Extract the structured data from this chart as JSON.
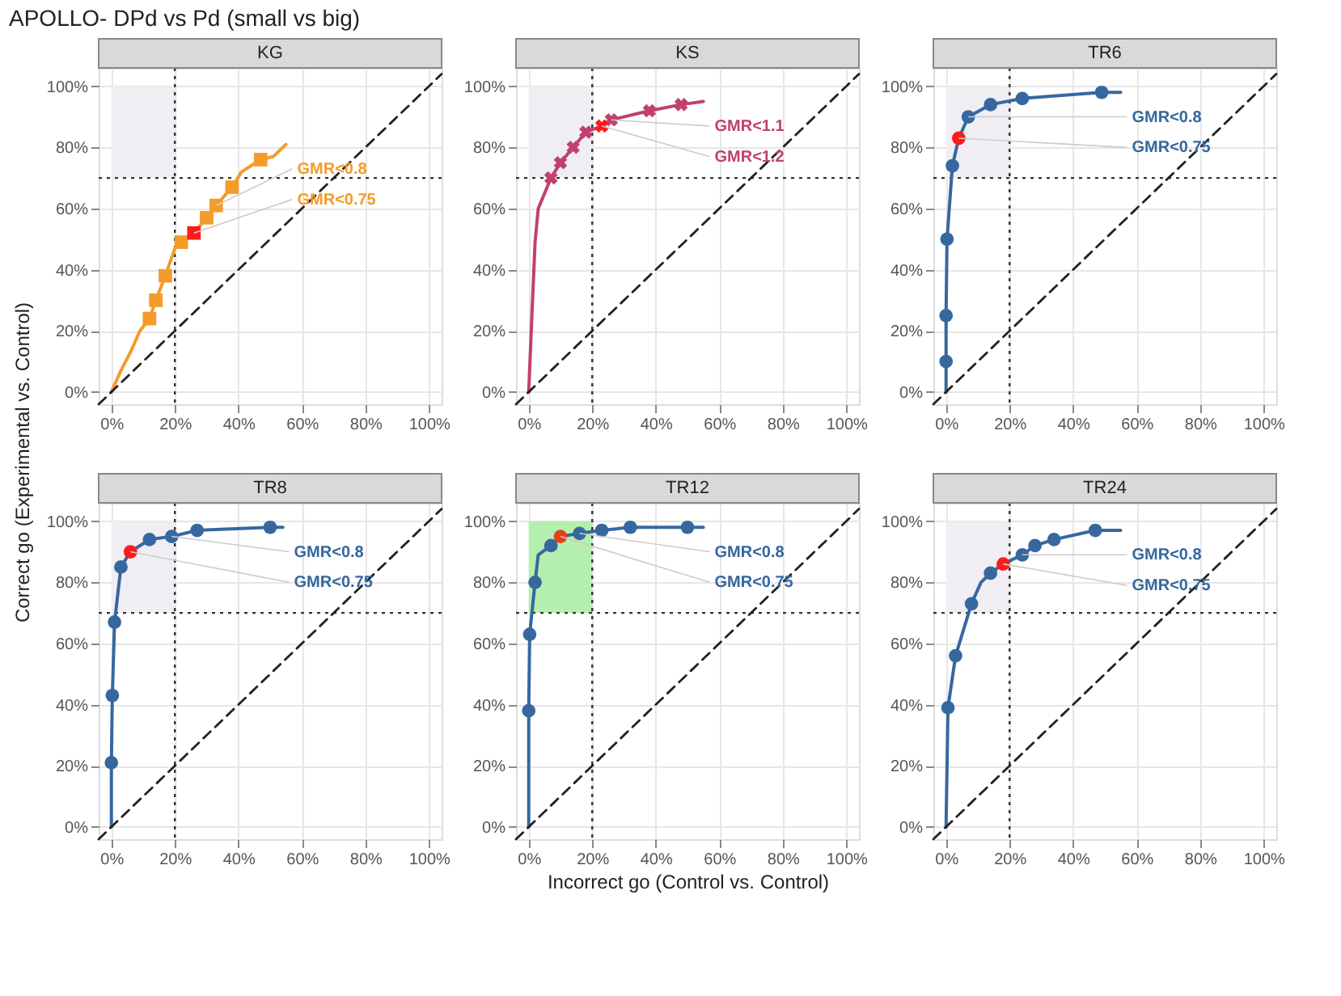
{
  "chart_data": [
    {
      "type": "line",
      "title": "KG",
      "xlim": [
        -4,
        104
      ],
      "ylim": [
        -4,
        106
      ],
      "xticks": [
        {
          "value": 0,
          "label": "0%"
        },
        {
          "value": 20,
          "label": "20%"
        },
        {
          "value": 40,
          "label": "40%"
        },
        {
          "value": 60,
          "label": "60%"
        },
        {
          "value": 80,
          "label": "80%"
        },
        {
          "value": 100,
          "label": "100%"
        }
      ],
      "yticks": [
        {
          "value": 0,
          "label": "0%"
        },
        {
          "value": 20,
          "label": "20%"
        },
        {
          "value": 40,
          "label": "40%"
        },
        {
          "value": 60,
          "label": "60%"
        },
        {
          "value": 80,
          "label": "80%"
        },
        {
          "value": 100,
          "label": "100%"
        }
      ],
      "grid": true,
      "ref_lines": [
        {
          "axis": "x",
          "value": 20,
          "color": "#333333",
          "line_style": "dotted"
        },
        {
          "axis": "y",
          "value": 70,
          "color": "#333333",
          "line_style": "dotted"
        }
      ],
      "bands": [
        {
          "axis": "x",
          "from": 0,
          "to": 20,
          "color": "#f0eef3"
        }
      ],
      "series": [
        {
          "type": "line",
          "color": "#f39c2b",
          "marker": "none",
          "line_style": "solid",
          "x": [
            0,
            3,
            6,
            9,
            12,
            14,
            17,
            20,
            22,
            26,
            30,
            33,
            38,
            41,
            44,
            47,
            51,
            55
          ],
          "values": [
            0,
            7,
            13,
            20,
            24,
            30,
            38,
            47,
            49,
            52,
            57,
            61,
            67,
            72,
            74,
            76,
            77,
            81
          ]
        },
        {
          "type": "scatter",
          "color": "#f39c2b",
          "marker": "square",
          "x": [
            12,
            14,
            17,
            22,
            30,
            33,
            38,
            47
          ],
          "values": [
            24,
            30,
            38,
            49,
            57,
            61,
            67,
            76
          ]
        },
        {
          "type": "scatter",
          "color": "#ff1a1a",
          "marker": "square",
          "x": [
            26
          ],
          "values": [
            52
          ]
        },
        {
          "type": "line",
          "color": "#222222",
          "marker": "none",
          "line_style": "dashed",
          "x": [
            -4,
            104
          ],
          "values": [
            -4,
            104
          ]
        }
      ],
      "annotations": [
        {
          "text": "GMR<0.8",
          "x": 33,
          "y": 61
        },
        {
          "text": "GMR<0.75",
          "x": 26,
          "y": 52
        }
      ]
    },
    {
      "type": "line",
      "title": "KS",
      "xlim": [
        -4,
        104
      ],
      "ylim": [
        -4,
        106
      ],
      "xticks": [
        {
          "value": 0,
          "label": "0%"
        },
        {
          "value": 20,
          "label": "20%"
        },
        {
          "value": 40,
          "label": "40%"
        },
        {
          "value": 60,
          "label": "60%"
        },
        {
          "value": 80,
          "label": "80%"
        },
        {
          "value": 100,
          "label": "100%"
        }
      ],
      "yticks": [
        {
          "value": 0,
          "label": "0%"
        },
        {
          "value": 20,
          "label": "20%"
        },
        {
          "value": 40,
          "label": "40%"
        },
        {
          "value": 60,
          "label": "60%"
        },
        {
          "value": 80,
          "label": "80%"
        },
        {
          "value": 100,
          "label": "100%"
        }
      ],
      "grid": true,
      "ref_lines": [
        {
          "axis": "x",
          "value": 20,
          "color": "#333333",
          "line_style": "dotted"
        },
        {
          "axis": "y",
          "value": 70,
          "color": "#333333",
          "line_style": "dotted"
        }
      ],
      "bands": [
        {
          "axis": "x",
          "from": 0,
          "to": 20,
          "color": "#f0eef3"
        }
      ],
      "series": [
        {
          "type": "line",
          "color": "#c2406e",
          "marker": "none",
          "line_style": "solid",
          "x": [
            0,
            1,
            2,
            3,
            7,
            10,
            14,
            18,
            23,
            26,
            38,
            48,
            55
          ],
          "values": [
            0,
            25,
            49,
            60,
            70,
            75,
            80,
            85,
            87,
            89,
            92,
            94,
            95
          ]
        },
        {
          "type": "scatter",
          "color": "#c2406e",
          "marker": "cross",
          "x": [
            7,
            10,
            14,
            18,
            26,
            38,
            48
          ],
          "values": [
            70,
            75,
            80,
            85,
            89,
            92,
            94
          ]
        },
        {
          "type": "scatter",
          "color": "#ff1a1a",
          "marker": "cross",
          "x": [
            23
          ],
          "values": [
            87
          ]
        },
        {
          "type": "line",
          "color": "#222222",
          "marker": "none",
          "line_style": "dashed",
          "x": [
            -4,
            104
          ],
          "values": [
            -4,
            104
          ]
        }
      ],
      "annotations": [
        {
          "text": "GMR<1.1",
          "x": 26,
          "y": 89
        },
        {
          "text": "GMR<1.2",
          "x": 23,
          "y": 87
        }
      ]
    },
    {
      "type": "line",
      "title": "TR6",
      "xlim": [
        -4,
        104
      ],
      "ylim": [
        -4,
        106
      ],
      "xticks": [
        {
          "value": 0,
          "label": "0%"
        },
        {
          "value": 20,
          "label": "20%"
        },
        {
          "value": 40,
          "label": "40%"
        },
        {
          "value": 60,
          "label": "60%"
        },
        {
          "value": 80,
          "label": "80%"
        },
        {
          "value": 100,
          "label": "100%"
        }
      ],
      "yticks": [
        {
          "value": 0,
          "label": "0%"
        },
        {
          "value": 20,
          "label": "20%"
        },
        {
          "value": 40,
          "label": "40%"
        },
        {
          "value": 60,
          "label": "60%"
        },
        {
          "value": 80,
          "label": "80%"
        },
        {
          "value": 100,
          "label": "100%"
        }
      ],
      "grid": true,
      "ref_lines": [
        {
          "axis": "x",
          "value": 20,
          "color": "#333333",
          "line_style": "dotted"
        },
        {
          "axis": "y",
          "value": 70,
          "color": "#333333",
          "line_style": "dotted"
        }
      ],
      "bands": [
        {
          "axis": "x",
          "from": 0,
          "to": 20,
          "color": "#f0eef3"
        }
      ],
      "series": [
        {
          "type": "line",
          "color": "#36689f",
          "marker": "none",
          "line_style": "solid",
          "x": [
            0,
            0,
            0,
            0.3,
            2,
            4,
            7,
            14,
            24,
            49,
            55
          ],
          "values": [
            0,
            10,
            25,
            50,
            74,
            83,
            90,
            94,
            96,
            98,
            98
          ]
        },
        {
          "type": "scatter",
          "color": "#36689f",
          "marker": "circle",
          "x": [
            0,
            0,
            0.3,
            2,
            7,
            14,
            24,
            49
          ],
          "values": [
            10,
            25,
            50,
            74,
            90,
            94,
            96,
            98
          ]
        },
        {
          "type": "scatter",
          "color": "#ff1a1a",
          "marker": "circle",
          "x": [
            4
          ],
          "values": [
            83
          ]
        },
        {
          "type": "line",
          "color": "#222222",
          "marker": "none",
          "line_style": "dashed",
          "x": [
            -4,
            104
          ],
          "values": [
            -4,
            104
          ]
        }
      ],
      "annotations": [
        {
          "text": "GMR<0.8",
          "x": 7,
          "y": 90
        },
        {
          "text": "GMR<0.75",
          "x": 4,
          "y": 83
        }
      ]
    },
    {
      "type": "line",
      "title": "TR8",
      "xlim": [
        -4,
        104
      ],
      "ylim": [
        -4,
        106
      ],
      "xticks": [
        {
          "value": 0,
          "label": "0%"
        },
        {
          "value": 20,
          "label": "20%"
        },
        {
          "value": 40,
          "label": "40%"
        },
        {
          "value": 60,
          "label": "60%"
        },
        {
          "value": 80,
          "label": "80%"
        },
        {
          "value": 100,
          "label": "100%"
        }
      ],
      "yticks": [
        {
          "value": 0,
          "label": "0%"
        },
        {
          "value": 20,
          "label": "20%"
        },
        {
          "value": 40,
          "label": "40%"
        },
        {
          "value": 60,
          "label": "60%"
        },
        {
          "value": 80,
          "label": "80%"
        },
        {
          "value": 100,
          "label": "100%"
        }
      ],
      "grid": true,
      "ref_lines": [
        {
          "axis": "x",
          "value": 20,
          "color": "#333333",
          "line_style": "dotted"
        },
        {
          "axis": "y",
          "value": 70,
          "color": "#333333",
          "line_style": "dotted"
        }
      ],
      "bands": [
        {
          "axis": "x",
          "from": 0,
          "to": 20,
          "color": "#f0eef3"
        }
      ],
      "series": [
        {
          "type": "line",
          "color": "#36689f",
          "marker": "none",
          "line_style": "solid",
          "x": [
            0,
            0,
            0.3,
            1,
            3,
            6,
            9,
            12,
            19,
            27,
            50,
            54
          ],
          "values": [
            0,
            21,
            43,
            67,
            85,
            90,
            92,
            94,
            95,
            97,
            98,
            98
          ]
        },
        {
          "type": "scatter",
          "color": "#36689f",
          "marker": "circle",
          "x": [
            0,
            0.3,
            1,
            3,
            12,
            19,
            27,
            50
          ],
          "values": [
            21,
            43,
            67,
            85,
            94,
            95,
            97,
            98
          ]
        },
        {
          "type": "scatter",
          "color": "#ff1a1a",
          "marker": "circle",
          "x": [
            6
          ],
          "values": [
            90
          ]
        },
        {
          "type": "line",
          "color": "#222222",
          "marker": "none",
          "line_style": "dashed",
          "x": [
            -4,
            104
          ],
          "values": [
            -4,
            104
          ]
        }
      ],
      "annotations": [
        {
          "text": "GMR<0.8",
          "x": 19,
          "y": 95
        },
        {
          "text": "GMR<0.75",
          "x": 6,
          "y": 90
        }
      ]
    },
    {
      "type": "line",
      "title": "TR12",
      "xlabel": "Incorrect go (Control vs. Control)",
      "xlim": [
        -4,
        104
      ],
      "ylim": [
        -4,
        106
      ],
      "xticks": [
        {
          "value": 0,
          "label": "0%"
        },
        {
          "value": 20,
          "label": "20%"
        },
        {
          "value": 40,
          "label": "40%"
        },
        {
          "value": 60,
          "label": "60%"
        },
        {
          "value": 80,
          "label": "80%"
        },
        {
          "value": 100,
          "label": "100%"
        }
      ],
      "yticks": [
        {
          "value": 0,
          "label": "0%"
        },
        {
          "value": 20,
          "label": "20%"
        },
        {
          "value": 40,
          "label": "40%"
        },
        {
          "value": 60,
          "label": "60%"
        },
        {
          "value": 80,
          "label": "80%"
        },
        {
          "value": 100,
          "label": "100%"
        }
      ],
      "grid": true,
      "ref_lines": [
        {
          "axis": "x",
          "value": 20,
          "color": "#333333",
          "line_style": "dotted"
        },
        {
          "axis": "y",
          "value": 70,
          "color": "#333333",
          "line_style": "dotted"
        }
      ],
      "bands": [
        {
          "axis": "x",
          "from": 0,
          "to": 20,
          "color": "#b5efad"
        }
      ],
      "series": [
        {
          "type": "line",
          "color": "#36689f",
          "marker": "none",
          "line_style": "solid",
          "x": [
            0,
            0,
            0.3,
            2,
            3,
            7,
            10,
            16,
            23,
            32,
            50,
            55
          ],
          "values": [
            0,
            38,
            63,
            80,
            89,
            92,
            95,
            96,
            97,
            98,
            98,
            98
          ]
        },
        {
          "type": "scatter",
          "color": "#36689f",
          "marker": "circle",
          "x": [
            0,
            0.3,
            2,
            7,
            16,
            23,
            32,
            50
          ],
          "values": [
            38,
            63,
            80,
            92,
            96,
            97,
            98,
            98
          ]
        },
        {
          "type": "scatter",
          "color": "#e2421b",
          "marker": "circle",
          "x": [
            10
          ],
          "values": [
            95
          ]
        },
        {
          "type": "line",
          "color": "#222222",
          "marker": "none",
          "line_style": "dashed",
          "x": [
            -4,
            104
          ],
          "values": [
            -4,
            104
          ]
        }
      ],
      "annotations": [
        {
          "text": "GMR<0.8",
          "x": 16,
          "y": 96
        },
        {
          "text": "GMR<0.75",
          "x": 10,
          "y": 95
        }
      ]
    },
    {
      "type": "line",
      "title": "TR24",
      "xlim": [
        -4,
        104
      ],
      "ylim": [
        -4,
        106
      ],
      "xticks": [
        {
          "value": 0,
          "label": "0%"
        },
        {
          "value": 20,
          "label": "20%"
        },
        {
          "value": 40,
          "label": "40%"
        },
        {
          "value": 60,
          "label": "60%"
        },
        {
          "value": 80,
          "label": "80%"
        },
        {
          "value": 100,
          "label": "100%"
        }
      ],
      "yticks": [
        {
          "value": 0,
          "label": "0%"
        },
        {
          "value": 20,
          "label": "20%"
        },
        {
          "value": 40,
          "label": "40%"
        },
        {
          "value": 60,
          "label": "60%"
        },
        {
          "value": 80,
          "label": "80%"
        },
        {
          "value": 100,
          "label": "100%"
        }
      ],
      "grid": true,
      "ref_lines": [
        {
          "axis": "x",
          "value": 20,
          "color": "#333333",
          "line_style": "dotted"
        },
        {
          "axis": "y",
          "value": 70,
          "color": "#333333",
          "line_style": "dotted"
        }
      ],
      "bands": [
        {
          "axis": "x",
          "from": 0,
          "to": 20,
          "color": "#f0eef3"
        }
      ],
      "series": [
        {
          "type": "line",
          "color": "#36689f",
          "marker": "none",
          "line_style": "solid",
          "x": [
            0,
            0.6,
            3,
            8,
            11,
            14,
            18,
            24,
            28,
            34,
            47,
            55
          ],
          "values": [
            0,
            39,
            56,
            73,
            80,
            83,
            86,
            89,
            92,
            94,
            97,
            97
          ]
        },
        {
          "type": "scatter",
          "color": "#36689f",
          "marker": "circle",
          "x": [
            0.6,
            3,
            8,
            14,
            24,
            28,
            34,
            47
          ],
          "values": [
            39,
            56,
            73,
            83,
            89,
            92,
            94,
            97
          ]
        },
        {
          "type": "scatter",
          "color": "#ff1a1a",
          "marker": "circle",
          "x": [
            18
          ],
          "values": [
            86
          ]
        },
        {
          "type": "line",
          "color": "#222222",
          "marker": "none",
          "line_style": "dashed",
          "x": [
            -4,
            104
          ],
          "values": [
            -4,
            104
          ]
        }
      ],
      "annotations": [
        {
          "text": "GMR<0.8",
          "x": 24,
          "y": 89
        },
        {
          "text": "GMR<0.75",
          "x": 18,
          "y": 86
        }
      ]
    },
    {
      "type": "other",
      "title": "APOLLO- DPd vs Pd (small vs big)",
      "ylabel": "Correct go (Experimental vs. Control)"
    }
  ]
}
